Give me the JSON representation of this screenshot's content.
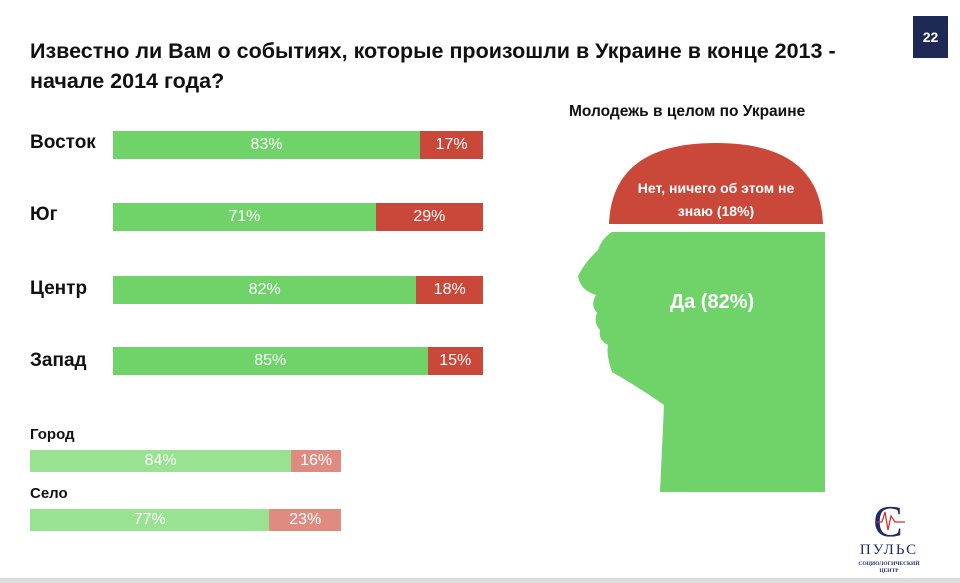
{
  "title": "Известно ли Вам о событиях, которые произошли в Украине в конце 2013 - начале 2014 года?",
  "page_number": "22",
  "colors": {
    "yes": "#6fd36a",
    "no": "#c9483a",
    "yes_light": "#98e291",
    "no_light": "#e08b80"
  },
  "chart_data": [
    {
      "type": "bar",
      "orientation": "horizontal",
      "stacked": true,
      "categories": [
        "Восток",
        "Юг",
        "Центр",
        "Запад"
      ],
      "series": [
        {
          "name": "Да",
          "values": [
            83,
            71,
            82,
            85
          ],
          "labels": [
            "83%",
            "71%",
            "82%",
            "85%"
          ]
        },
        {
          "name": "Нет",
          "values": [
            17,
            29,
            18,
            15
          ],
          "labels": [
            "17%",
            "29%",
            "18%",
            "15%"
          ]
        }
      ]
    },
    {
      "type": "bar",
      "orientation": "horizontal",
      "stacked": true,
      "categories": [
        "Город",
        "Село"
      ],
      "series": [
        {
          "name": "Да",
          "values": [
            84,
            77
          ],
          "labels": [
            "84%",
            "77%"
          ]
        },
        {
          "name": "Нет",
          "values": [
            16,
            23
          ],
          "labels": [
            "16%",
            "23%"
          ]
        }
      ]
    },
    {
      "type": "pie",
      "title": "Молодежь в целом по Украине",
      "slices": [
        {
          "label": "Да (82%)",
          "value": 82
        },
        {
          "label": "Нет, ничего об этом не знаю (18%)",
          "value": 18
        }
      ]
    }
  ],
  "logo": {
    "name": "ПУЛЬС",
    "subtitle": "социологический центр"
  }
}
